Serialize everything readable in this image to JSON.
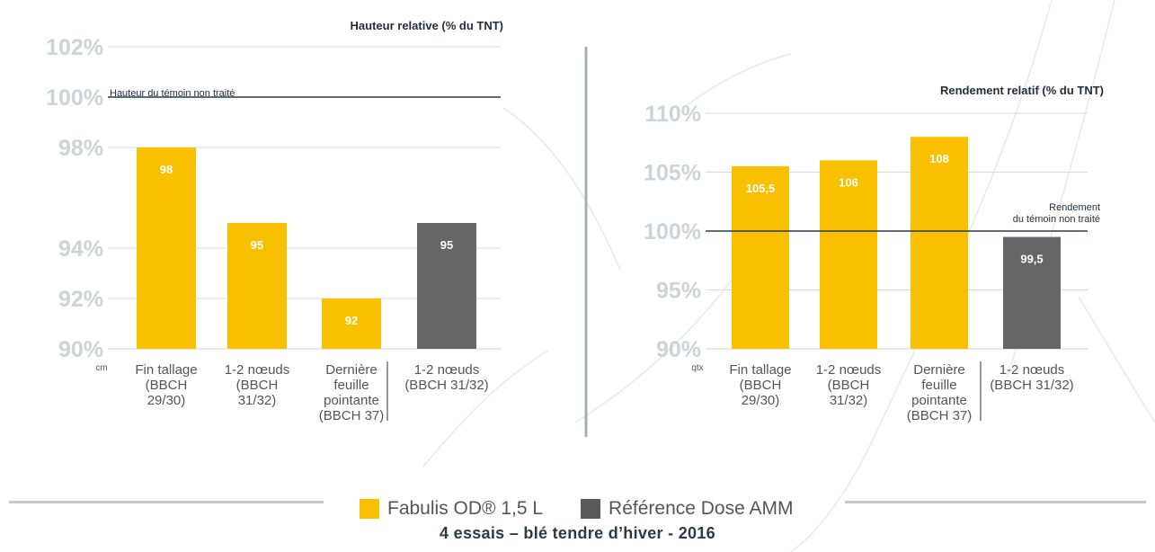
{
  "chart_data": [
    {
      "type": "bar",
      "title": "Hauteur relative (% du TNT)",
      "unit_label": "cm",
      "categories": [
        [
          "Fin tallage",
          "(BBCH",
          "29/30)"
        ],
        [
          "1-2 nœuds",
          "(BBCH",
          "31/32)"
        ],
        [
          "Dernière",
          "feuille",
          "pointante",
          "(BBCH 37)"
        ],
        [
          "1-2 nœuds",
          "(BBCH 31/32)"
        ]
      ],
      "values": [
        98,
        95,
        92,
        95
      ],
      "value_labels": [
        "98",
        "95",
        "92",
        "95"
      ],
      "bar_colors": [
        "#f9c000",
        "#f9c000",
        "#f9c000",
        "#666666"
      ],
      "yticks": [
        90,
        92,
        94,
        98,
        100,
        102
      ],
      "ytick_labels": [
        "90%",
        "92%",
        "94%",
        "98%",
        "100%",
        "102%"
      ],
      "ylim": [
        90,
        102
      ],
      "reference": {
        "value": 100,
        "label": "Hauteur du témoin non traité"
      },
      "grid": true
    },
    {
      "type": "bar",
      "title": "Rendement relatif (% du TNT)",
      "unit_label": "qtx",
      "categories": [
        [
          "Fin tallage",
          "(BBCH",
          "29/30)"
        ],
        [
          "1-2 nœuds",
          "(BBCH",
          "31/32)"
        ],
        [
          "Dernière",
          "feuille",
          "pointante",
          "(BBCH 37)"
        ],
        [
          "1-2 nœuds",
          "(BBCH 31/32)"
        ]
      ],
      "values": [
        105.5,
        106,
        108,
        99.5
      ],
      "value_labels": [
        "105,5",
        "106",
        "108",
        "99,5"
      ],
      "bar_colors": [
        "#f9c000",
        "#f9c000",
        "#f9c000",
        "#666666"
      ],
      "yticks": [
        90,
        95,
        100,
        105,
        110
      ],
      "ytick_labels": [
        "90%",
        "95%",
        "100%",
        "105%",
        "110%"
      ],
      "ylim": [
        90,
        110
      ],
      "reference": {
        "value": 100,
        "label": [
          "Rendement",
          "du témoin non traité"
        ]
      },
      "grid": true
    }
  ],
  "legend": [
    {
      "label": "Fabulis OD® 1,5 L",
      "color": "#f9c000"
    },
    {
      "label": "Référence Dose AMM",
      "color": "#5a5a5a"
    }
  ],
  "footer": {
    "title": "4 essais – blé tendre d’hiver - 2016"
  },
  "colors": {
    "grid": "#d9d9d9",
    "tick": "#cfd2d6",
    "ref_line": "#2b3a4d",
    "axis_text": "#555555"
  }
}
